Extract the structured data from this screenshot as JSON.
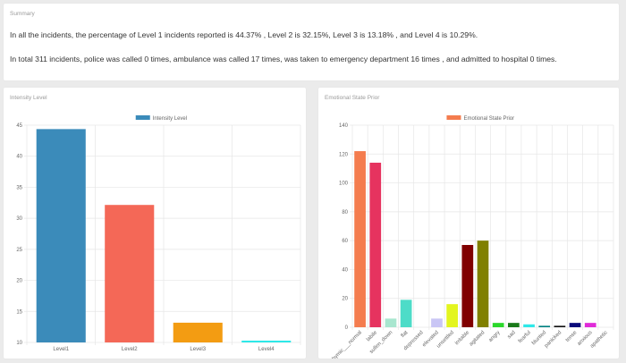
{
  "summary": {
    "title": "Summary",
    "line1": "In all the incidents, the percentage of Level 1 incidents reported is 44.37% , Level 2 is 32.15%, Level 3 is 13.18% , and Level 4 is 10.29%.",
    "line2": "In total 311 incidents, police was called 0 times, ambulance was called 17 times, was taken to emergency department 16 times , and admitted to hospital 0 times."
  },
  "intensity_panel": {
    "title": "Intensity Level"
  },
  "emotion_panel": {
    "title": "Emotional State Prior"
  },
  "chart_data": [
    {
      "type": "bar",
      "legend": "Intensity Level",
      "categories": [
        "Level1",
        "Level2",
        "Level3",
        "Level4"
      ],
      "values": [
        44.37,
        32.15,
        13.18,
        10.29
      ],
      "colors": [
        "#3b8bba",
        "#f46857",
        "#f39c12",
        "#2ee8e8"
      ],
      "legend_color": "#3b8bba",
      "ylim": [
        10,
        45
      ],
      "yticks": [
        10,
        15,
        20,
        25,
        30,
        35,
        40,
        45
      ],
      "grid": true,
      "legend_position": "top-center"
    },
    {
      "type": "bar",
      "legend": "Emotional State Prior",
      "categories": [
        "euthymic__normal",
        "labile",
        "sullen_down",
        "flat",
        "depressed",
        "elevated",
        "unsettled",
        "irritable",
        "agitated",
        "angry",
        "sad",
        "fearful",
        "blunted",
        "panicked",
        "tense",
        "anxious",
        "apathetic"
      ],
      "tick_labels": [
        "euthymic___normal",
        "labile",
        "sullen_down",
        "flat",
        "depressed",
        "elevated",
        "unsettled",
        "irritable",
        "agitated",
        "angry",
        "sad",
        "fearful",
        "blunted",
        "panicked",
        "tense",
        "anxious",
        "apathetic"
      ],
      "values": [
        122,
        114,
        6,
        19,
        0,
        6,
        16,
        57,
        60,
        3,
        3,
        2,
        1,
        1,
        3,
        3,
        0
      ],
      "colors": [
        "#f47c4e",
        "#e6335f",
        "#a8e6cf",
        "#4ddcc8",
        "#9aa0a6",
        "#c9c6f5",
        "#e3f51f",
        "#800000",
        "#808000",
        "#2ad82a",
        "#1a7a1a",
        "#2ee8e8",
        "#008080",
        "#111111",
        "#0a0a7a",
        "#e02ad8",
        "#ff66ff"
      ],
      "legend_color": "#f47c4e",
      "ylim": [
        0,
        140
      ],
      "yticks": [
        0,
        20,
        40,
        60,
        80,
        100,
        120,
        140
      ],
      "grid": true,
      "legend_position": "top-center"
    }
  ]
}
